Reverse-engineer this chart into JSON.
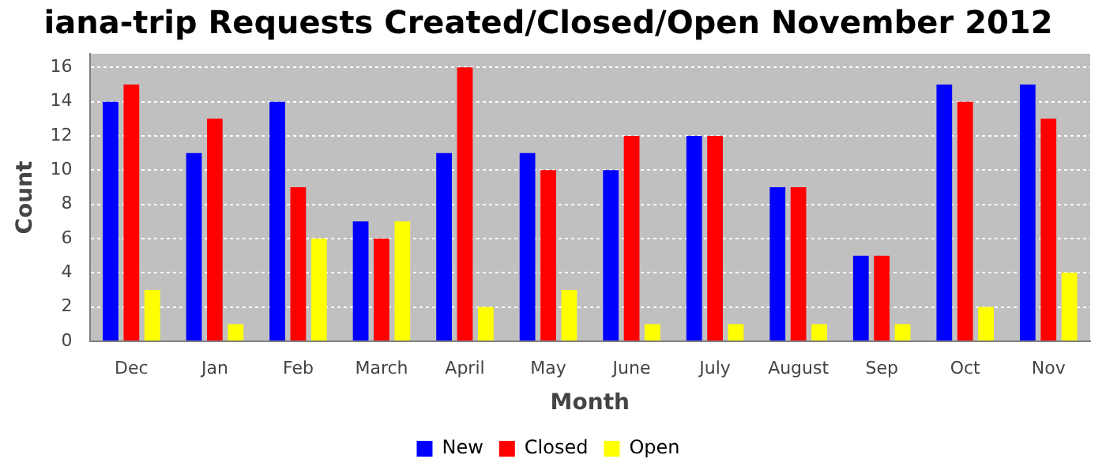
{
  "chart_data": {
    "type": "bar",
    "title": "iana-trip Requests Created/Closed/Open November 2012",
    "xlabel": "Month",
    "ylabel": "Count",
    "categories": [
      "Dec",
      "Jan",
      "Feb",
      "March",
      "April",
      "May",
      "June",
      "July",
      "August",
      "Sep",
      "Oct",
      "Nov"
    ],
    "series": [
      {
        "name": "New",
        "color": "#0000ff",
        "values": [
          14,
          11,
          14,
          7,
          11,
          11,
          10,
          12,
          9,
          5,
          15,
          15
        ]
      },
      {
        "name": "Closed",
        "color": "#ff0000",
        "values": [
          15,
          13,
          9,
          6,
          16,
          10,
          12,
          12,
          9,
          5,
          14,
          13
        ]
      },
      {
        "name": "Open",
        "color": "#ffff00",
        "values": [
          3,
          1,
          6,
          7,
          2,
          3,
          1,
          1,
          1,
          1,
          2,
          4
        ]
      }
    ],
    "ylim": [
      0,
      16.8
    ],
    "yticks": [
      0,
      2,
      4,
      6,
      8,
      10,
      12,
      14,
      16
    ],
    "grid": "y",
    "legend": "bottom"
  }
}
